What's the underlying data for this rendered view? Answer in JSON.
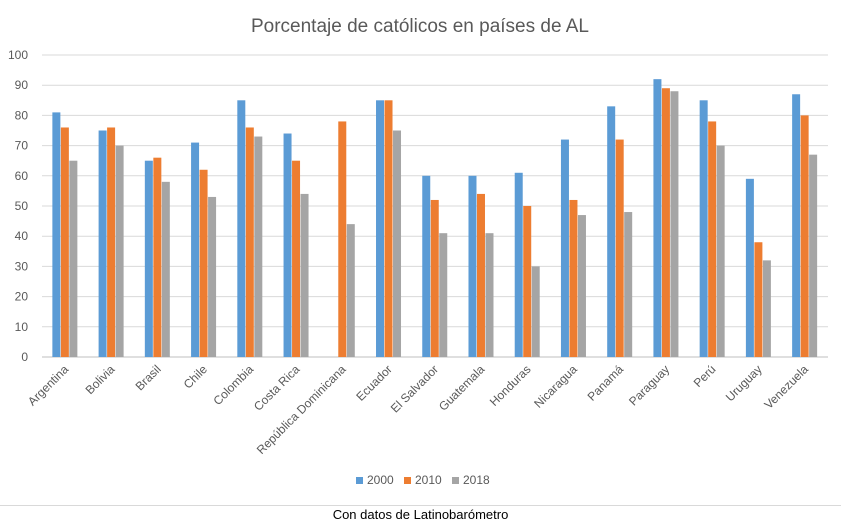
{
  "chart_data": {
    "type": "bar",
    "title": "Porcentaje de católicos en países de AL",
    "xlabel": "",
    "ylabel": "",
    "ylim": [
      0,
      100
    ],
    "yticks": [
      0,
      10,
      20,
      30,
      40,
      50,
      60,
      70,
      80,
      90,
      100
    ],
    "grid": true,
    "legend_position": "bottom",
    "categories": [
      "Argentina",
      "Bolivia",
      "Brasil",
      "Chile",
      "Colombia",
      "Costa Rica",
      "República Dominicana",
      "Ecuador",
      "El Salvador",
      "Guatemala",
      "Honduras",
      "Nicaragua",
      "Panamá",
      "Paraguay",
      "Perú",
      "Uruguay",
      "Venezuela"
    ],
    "series": [
      {
        "name": "2000",
        "color": "#5b9bd5",
        "values": [
          81,
          75,
          65,
          71,
          85,
          74,
          null,
          85,
          60,
          60,
          61,
          72,
          83,
          92,
          85,
          59,
          87
        ]
      },
      {
        "name": "2010",
        "color": "#ed7d31",
        "values": [
          76,
          76,
          66,
          62,
          76,
          65,
          78,
          85,
          52,
          54,
          50,
          52,
          72,
          89,
          78,
          38,
          80
        ]
      },
      {
        "name": "2018",
        "color": "#a5a5a5",
        "values": [
          65,
          70,
          58,
          53,
          73,
          54,
          44,
          75,
          41,
          41,
          30,
          47,
          48,
          88,
          70,
          32,
          67
        ]
      }
    ]
  },
  "caption": "Con datos de Latinobarómetro"
}
